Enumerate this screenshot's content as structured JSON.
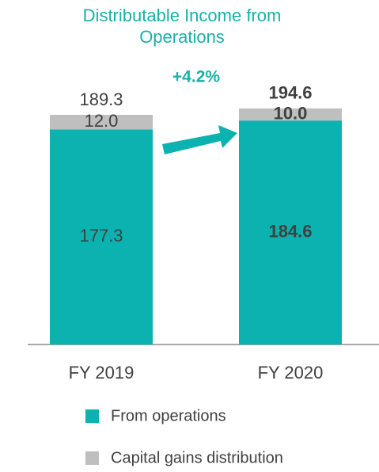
{
  "chart_data": {
    "type": "stacked_bar",
    "title": "Distributable Income from Operations",
    "annotation": "+4.2%",
    "categories": [
      "FY 2019",
      "FY 2020"
    ],
    "series": [
      {
        "name": "From operations",
        "color": "#0bb2af",
        "values": [
          177.3,
          184.6
        ]
      },
      {
        "name": "Capital gains distribution",
        "color": "#bfbfbf",
        "values": [
          12.0,
          10.0
        ],
        "value_labels": [
          "12.0",
          "10.0"
        ]
      }
    ],
    "totals": [
      189.3,
      194.6
    ],
    "ylim": [
      0,
      200
    ]
  }
}
